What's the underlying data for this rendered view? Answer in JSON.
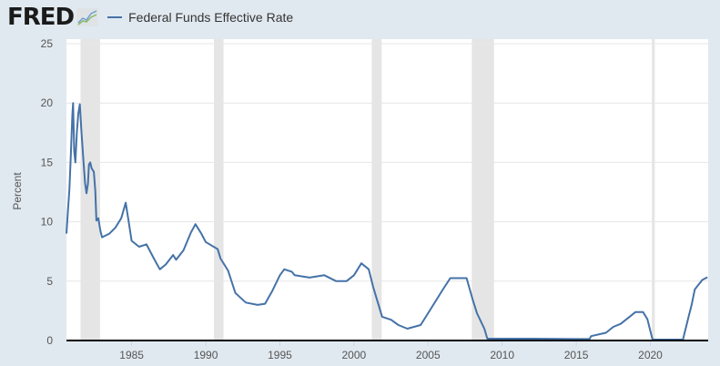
{
  "header": {
    "logo": "FRED",
    "logo_icon": "line-chart-icon"
  },
  "colors": {
    "series": "#4572a7",
    "recession": "#e5e5e5",
    "background": "#e1e9f0"
  },
  "chart_data": {
    "type": "line",
    "title": "",
    "legend": [
      {
        "name": "Federal Funds Effective Rate",
        "position": "top-left"
      }
    ],
    "xlabel": "",
    "ylabel": "Percent",
    "xlim": [
      1980.6,
      2023.9
    ],
    "ylim": [
      0,
      25
    ],
    "yticks": [
      "0",
      "5",
      "10",
      "15",
      "20",
      "25"
    ],
    "xticks": [
      "1985",
      "1990",
      "1995",
      "2000",
      "2005",
      "2010",
      "2015",
      "2020"
    ],
    "grid": "horizontal",
    "recessions": [
      [
        1981.55,
        1982.87
      ],
      [
        1990.55,
        1991.2
      ],
      [
        2001.2,
        2001.87
      ],
      [
        2007.95,
        2009.45
      ],
      [
        2020.1,
        2020.3
      ]
    ],
    "series": [
      {
        "name": "Federal Funds Effective Rate",
        "x": [
          1980.6,
          1980.7,
          1980.8,
          1980.9,
          1981.0,
          1981.05,
          1981.12,
          1981.2,
          1981.3,
          1981.4,
          1981.5,
          1981.6,
          1981.75,
          1981.85,
          1981.95,
          1982.05,
          1982.12,
          1982.2,
          1982.3,
          1982.45,
          1982.55,
          1982.62,
          1982.75,
          1982.9,
          1983.0,
          1983.5,
          1983.9,
          1984.3,
          1984.6,
          1984.8,
          1985.0,
          1985.5,
          1986.0,
          1986.5,
          1986.9,
          1987.3,
          1987.8,
          1988.0,
          1988.5,
          1989.0,
          1989.3,
          1989.7,
          1990.0,
          1990.8,
          1991.0,
          1991.5,
          1992.0,
          1992.7,
          1993.5,
          1994.0,
          1994.5,
          1995.0,
          1995.3,
          1995.8,
          1996.0,
          1997.0,
          1998.0,
          1998.8,
          1999.5,
          2000.0,
          2000.5,
          2001.0,
          2001.3,
          2001.9,
          2002.5,
          2003.0,
          2003.6,
          2004.5,
          2005.0,
          2006.0,
          2006.5,
          2007.6,
          2008.0,
          2008.3,
          2008.8,
          2009.0,
          2012.0,
          2015.9,
          2016.0,
          2017.0,
          2017.5,
          2018.0,
          2018.5,
          2019.0,
          2019.5,
          2019.8,
          2020.15,
          2022.2,
          2022.5,
          2022.8,
          2023.0,
          2023.5,
          2023.85
        ],
        "values": [
          9.0,
          10.9,
          12.8,
          15.8,
          19.0,
          20.0,
          16.0,
          15.0,
          17.5,
          19.1,
          19.9,
          17.8,
          15.1,
          13.3,
          12.4,
          13.2,
          14.8,
          15.0,
          14.5,
          14.2,
          12.6,
          10.1,
          10.3,
          9.2,
          8.7,
          9.0,
          9.5,
          10.3,
          11.6,
          10.0,
          8.4,
          7.9,
          8.1,
          6.9,
          6.0,
          6.4,
          7.2,
          6.8,
          7.6,
          9.1,
          9.8,
          9.0,
          8.3,
          7.7,
          6.9,
          5.9,
          4.0,
          3.2,
          3.0,
          3.1,
          4.2,
          5.5,
          6.0,
          5.8,
          5.5,
          5.3,
          5.5,
          5.0,
          5.0,
          5.5,
          6.5,
          6.0,
          4.5,
          2.0,
          1.75,
          1.3,
          1.0,
          1.3,
          2.3,
          4.3,
          5.25,
          5.25,
          3.5,
          2.3,
          1.0,
          0.15,
          0.15,
          0.12,
          0.37,
          0.65,
          1.15,
          1.4,
          1.9,
          2.4,
          2.4,
          1.8,
          0.08,
          0.08,
          1.6,
          3.1,
          4.3,
          5.1,
          5.33
        ]
      }
    ]
  }
}
